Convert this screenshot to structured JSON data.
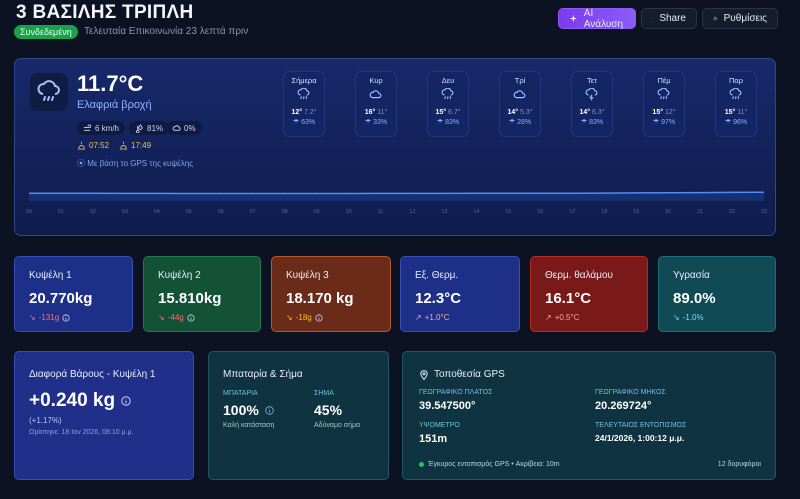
{
  "header": {
    "title": "3 ΒΑΣΙΛΗΣ ΤΡΙΠΛΗ",
    "status_badge": "Συνδεδεμένη",
    "last_comm": "Τελευταία Επικοινωνία 23 λεπτά πριν",
    "buttons": {
      "ai": "AI Ανάλυση",
      "share": "Share",
      "settings": "Ρυθμίσεις"
    }
  },
  "weather": {
    "temperature": "11.7°C",
    "condition": "Ελαφριά βροχή",
    "wind": "6 km/h",
    "humidity": "81%",
    "rain": "0%",
    "sunrise": "07:52",
    "sunset": "17:49",
    "gps_note": "Με βάση το GPS της κυψέλης",
    "days": [
      {
        "name": "Σήμερα",
        "icon": "rain-icon",
        "max": "12°",
        "min": "7.2°",
        "rain": "63%"
      },
      {
        "name": "Κυρ",
        "icon": "cloud-icon",
        "max": "16°",
        "min": "11°",
        "rain": "33%"
      },
      {
        "name": "Δευ",
        "icon": "rain-icon",
        "max": "15°",
        "min": "6.7°",
        "rain": "83%"
      },
      {
        "name": "Τρί",
        "icon": "cloud-icon",
        "max": "14°",
        "min": "5.3°",
        "rain": "28%"
      },
      {
        "name": "Τετ",
        "icon": "storm-icon",
        "max": "14°",
        "min": "6.3°",
        "rain": "83%"
      },
      {
        "name": "Πέμ",
        "icon": "rain-icon",
        "max": "15°",
        "min": "12°",
        "rain": "97%"
      },
      {
        "name": "Παρ",
        "icon": "rain-icon",
        "max": "15°",
        "min": "11°",
        "rain": "96%"
      }
    ]
  },
  "chart_data": {
    "type": "area",
    "x": [
      "00",
      "01",
      "02",
      "03",
      "04",
      "05",
      "06",
      "07",
      "08",
      "09",
      "10",
      "11",
      "12",
      "13",
      "14",
      "15",
      "16",
      "17",
      "18",
      "19",
      "20",
      "21",
      "22",
      "23"
    ],
    "y": [
      11.7,
      11.6,
      11.5,
      11.4,
      11.4,
      11.3,
      11.3,
      11.3,
      11.3,
      11.3,
      11.3,
      11.4,
      11.4,
      11.4,
      11.5,
      11.5,
      11.6,
      11.7,
      11.9,
      12.1,
      12.4,
      12.6,
      12.9,
      13.0
    ],
    "ylim": [
      0,
      30
    ],
    "title": "",
    "xlabel": "",
    "ylabel": ""
  },
  "sensors": [
    {
      "name": "Κυψέλη 1",
      "value": "20.770kg",
      "delta": "-131g",
      "dir": "down",
      "color": "red",
      "info": true
    },
    {
      "name": "Κυψέλη 2",
      "value": "15.810kg",
      "delta": "-44g",
      "dir": "down",
      "color": "red",
      "info": true
    },
    {
      "name": "Κυψέλη 3",
      "value": "18.170 kg",
      "delta": "-18g",
      "dir": "down",
      "color": "orange",
      "info": true
    },
    {
      "name": "Εξ. Θερμ.",
      "value": "12.3°C",
      "delta": "+1.0°C",
      "dir": "up",
      "color": "pink",
      "info": false
    },
    {
      "name": "Θερμ. θαλάμου",
      "value": "16.1°C",
      "delta": "+0.5°C",
      "dir": "up",
      "color": "pink",
      "info": false
    },
    {
      "name": "Υγρασία",
      "value": "89.0%",
      "delta": "-1.0%",
      "dir": "down",
      "color": "teal",
      "info": false
    }
  ],
  "weight_diff": {
    "title": "Διαφορά Βάρους - Κυψέλη 1",
    "value": "+0.240 kg",
    "percent": "(+1.17%)",
    "updated": "Ορίστηκε: 18 Ιαν 2026, 08:10 μ.μ."
  },
  "battery": {
    "title": "Μπαταρία & Σήμα",
    "battery_label": "ΜΠΑΤΑΡΙΑ",
    "battery_value": "100%",
    "battery_status": "Καλή κατάσταση",
    "signal_label": "ΣΗΜΑ",
    "signal_value": "45%",
    "signal_status": "Αδύναμο σήμα"
  },
  "gps": {
    "title": "Τοποθεσία GPS",
    "lat_label": "ΓΕΩΓΡΑΦΙΚΟ ΠΛΑΤΟΣ",
    "lat_value": "39.547500°",
    "lon_label": "ΓΕΩΓΡΑΦΙΚΟ ΜΗΚΟΣ",
    "lon_value": "20.269724°",
    "alt_label": "ΥΨΟΜΕΤΡΟ",
    "alt_value": "151m",
    "last_label": "ΤΕΛΕΥΤΑΙΟΣ ΕΝΤΟΠΙΣΜΟΣ",
    "last_value": "24/1/2026, 1:00:12 μ.μ.",
    "fix": "Έγκυρος εντοπισμός GPS • Ακρίβεια: 10m",
    "satellites": "12 δορυφόροι"
  }
}
